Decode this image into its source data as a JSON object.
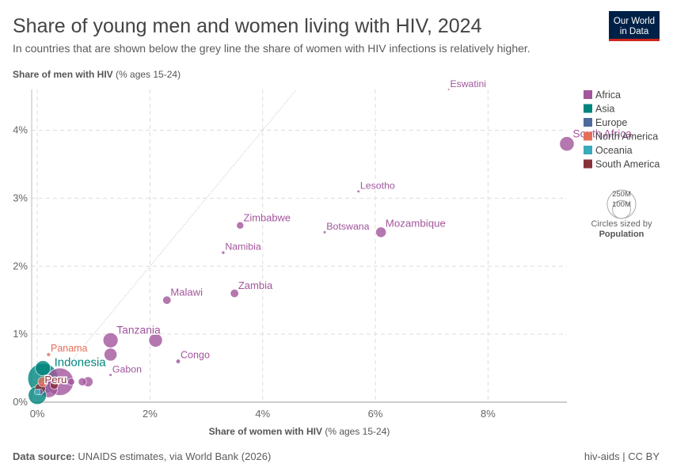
{
  "chart_data": {
    "type": "scatter",
    "title": "Share of young men and women living with HIV, 2024",
    "subtitle": "In countries that are shown below the grey line the share of women with HIV infections is relatively higher.",
    "ylabel": "Share of men with HIV",
    "ylabel_unit": "(% ages 15-24)",
    "xlabel": "Share of women with HIV",
    "xlabel_unit": "(% ages 15-24)",
    "xlim": [
      -0.1,
      9.4
    ],
    "ylim": [
      0,
      4.6
    ],
    "xticks": [
      {
        "value": 0,
        "label": "0%"
      },
      {
        "value": 2,
        "label": "2%"
      },
      {
        "value": 4,
        "label": "4%"
      },
      {
        "value": 6,
        "label": "6%"
      },
      {
        "value": 8,
        "label": "8%"
      }
    ],
    "yticks": [
      {
        "value": 0,
        "label": "0%"
      },
      {
        "value": 1,
        "label": "1%"
      },
      {
        "value": 2,
        "label": "2%"
      },
      {
        "value": 3,
        "label": "3%"
      },
      {
        "value": 4,
        "label": "4%"
      }
    ],
    "grid": true,
    "legend": "right",
    "series": [
      {
        "name": "Africa",
        "color": "#a2559c",
        "x": [
          7.3,
          9.4,
          5.7,
          3.6,
          5.1,
          6.1,
          3.3,
          3.5,
          2.3,
          1.3,
          2.1,
          1.3,
          2.5,
          1.3,
          0.9,
          0.9,
          0.8,
          0.6,
          0.4,
          0.2,
          0.5
        ],
        "y": [
          4.6,
          3.8,
          3.1,
          2.6,
          2.5,
          2.5,
          2.2,
          1.6,
          1.5,
          0.91,
          0.91,
          0.7,
          0.6,
          0.4,
          0.6,
          0.3,
          0.3,
          0.3,
          0.3,
          0.2,
          0.6
        ],
        "sizes": [
          1.2,
          64,
          2.3,
          16,
          2.5,
          33,
          3,
          21,
          21,
          68,
          56,
          50,
          6,
          2.5,
          1.5,
          30,
          20,
          15,
          230,
          100,
          2
        ],
        "point_labels": [
          "Eswatini",
          "South Africa",
          "Lesotho",
          "Zimbabwe",
          "Botswana",
          "Mozambique",
          "Namibia",
          "Zambia",
          "Malawi",
          "Tanzania",
          null,
          null,
          "Congo",
          "Gabon",
          null,
          null,
          null,
          null,
          null,
          null,
          null
        ]
      },
      {
        "name": "Asia",
        "color": "#00847e",
        "x": [
          0.1,
          0.1,
          0
        ],
        "y": [
          0.35,
          0.5,
          0.1
        ],
        "sizes": [
          280,
          70,
          100
        ],
        "point_labels": [
          "Indonesia",
          null,
          null
        ]
      },
      {
        "name": "Europe",
        "color": "#4c6a9c",
        "x": [
          0.05
        ],
        "y": [
          0.15
        ],
        "sizes": [
          10
        ],
        "point_labels": [
          null
        ]
      },
      {
        "name": "North America",
        "color": "#e56e5a",
        "x": [
          0.2,
          0.1
        ],
        "y": [
          0.7,
          0.3
        ],
        "sizes": [
          4.5,
          30
        ],
        "point_labels": [
          "Panama",
          null
        ]
      },
      {
        "name": "Oceania",
        "color": "#38aaba",
        "x": [
          0
        ],
        "y": [
          0.15
        ],
        "sizes": [
          10
        ],
        "point_labels": [
          null
        ]
      },
      {
        "name": "South America",
        "color": "#883039",
        "x": [
          0.05,
          0.3
        ],
        "y": [
          0.2,
          0.25
        ],
        "sizes": [
          34,
          20
        ],
        "point_labels": [
          "Peru",
          null
        ]
      }
    ],
    "size_legend": {
      "ticks": [
        {
          "value": 250,
          "label": "250M"
        },
        {
          "value": 100,
          "label": "100M"
        }
      ],
      "caption": "Circles sized by",
      "variable": "Population"
    },
    "source_label": "Data source:",
    "source": "UNAIDS estimates, via World Bank (2026)",
    "footer_right": "hiv-aids | CC BY",
    "logo": [
      "Our World",
      "in Data"
    ]
  }
}
